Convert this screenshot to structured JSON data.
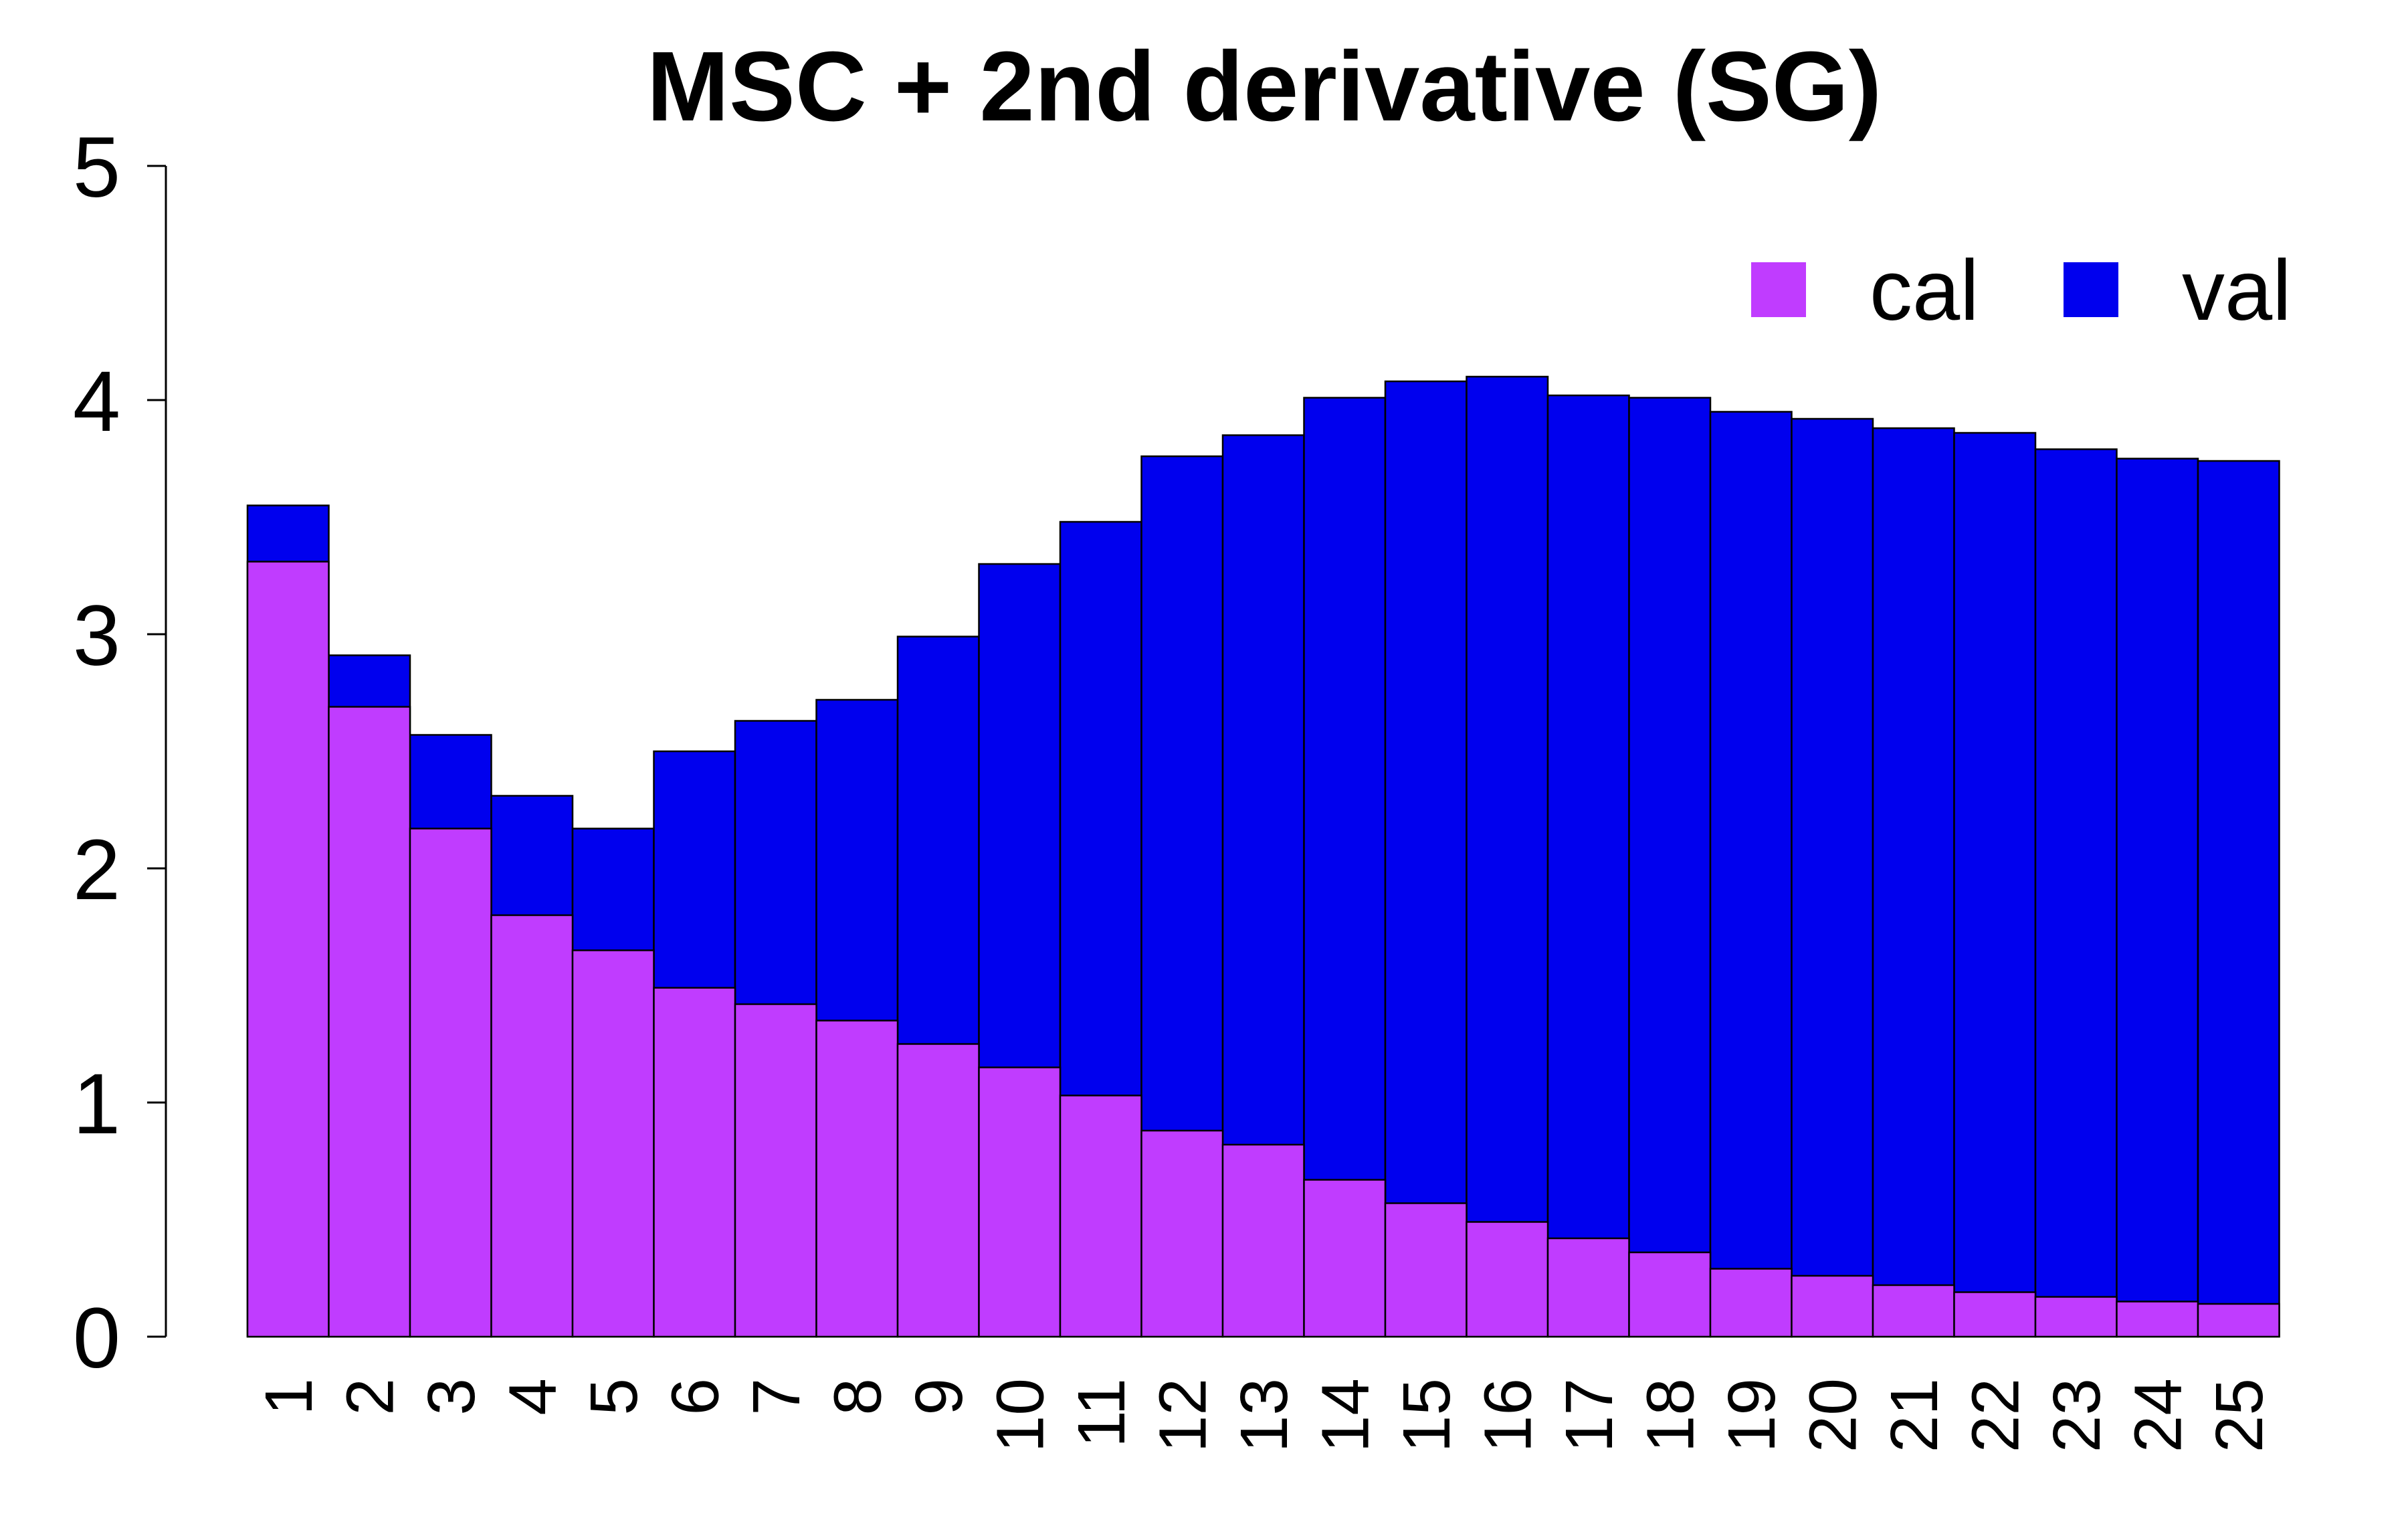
{
  "chart_data": {
    "type": "bar",
    "title": "MSC + 2nd derivative (SG)",
    "xlabel": "",
    "ylabel": "",
    "ylim": [
      0,
      5
    ],
    "yticks": [
      0,
      1,
      2,
      3,
      4,
      5
    ],
    "grid": false,
    "legend_position": "top-right",
    "categories": [
      "1",
      "2",
      "3",
      "4",
      "5",
      "6",
      "7",
      "8",
      "9",
      "10",
      "11",
      "12",
      "13",
      "14",
      "15",
      "16",
      "17",
      "18",
      "19",
      "20",
      "21",
      "22",
      "23",
      "24",
      "25"
    ],
    "series": [
      {
        "name": "cal",
        "color": "#c03cff",
        "values": [
          3.31,
          2.69,
          2.17,
          1.8,
          1.65,
          1.49,
          1.42,
          1.35,
          1.25,
          1.15,
          1.03,
          0.88,
          0.82,
          0.67,
          0.57,
          0.49,
          0.42,
          0.36,
          0.29,
          0.26,
          0.22,
          0.19,
          0.17,
          0.15,
          0.14
        ]
      },
      {
        "name": "val",
        "color": "#0000ee",
        "values": [
          3.55,
          2.91,
          2.57,
          2.31,
          2.17,
          2.5,
          2.63,
          2.72,
          2.99,
          3.3,
          3.48,
          3.76,
          3.85,
          4.01,
          4.08,
          4.1,
          4.02,
          4.01,
          3.95,
          3.92,
          3.88,
          3.86,
          3.79,
          3.75,
          3.74
        ]
      }
    ]
  }
}
